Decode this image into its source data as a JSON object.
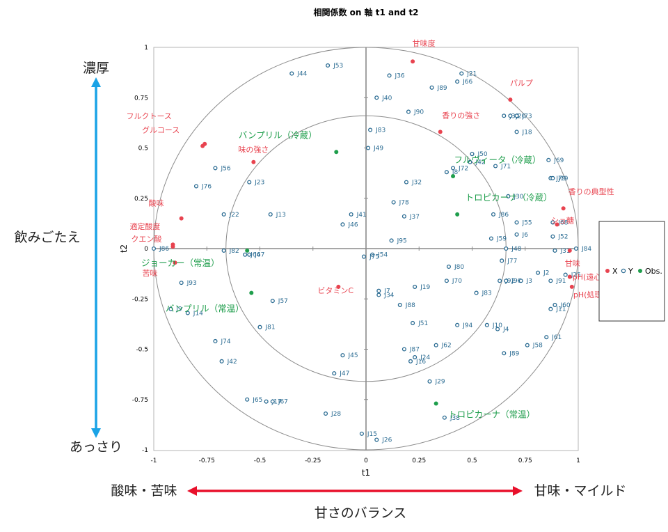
{
  "chart_data": {
    "type": "scatter",
    "title": "相関係数 on 軸 t1 and t2",
    "xlabel": "t1",
    "ylabel": "t2",
    "xlim": [
      -1,
      1
    ],
    "ylim": [
      -1,
      1
    ],
    "xticks": [
      "-1",
      "-0.75",
      "-0.5",
      "-0.25",
      "0",
      "0.25",
      "0.5",
      "0.75",
      "1"
    ],
    "yticks": [
      "1",
      "0.75",
      "0.5",
      "0.25",
      "0",
      "-0.25",
      "-0.5",
      "-0.75",
      "-1"
    ],
    "circles": [
      1.0,
      0.66
    ],
    "legend": {
      "position": "right",
      "entries": [
        "X",
        "Y",
        "Obs."
      ]
    },
    "colors": {
      "X": "#e8434f",
      "Y": "#2a6b92",
      "Obs": "#1f9e4c",
      "grid": "#9a9a9a"
    },
    "series": [
      {
        "name": "X",
        "points": [
          {
            "x": 0.22,
            "y": 0.93,
            "label": "甘味度"
          },
          {
            "x": 0.68,
            "y": 0.74,
            "label": "パルプ"
          },
          {
            "x": 0.35,
            "y": 0.58,
            "label": "香りの強さ"
          },
          {
            "x": -0.76,
            "y": 0.52,
            "label": "フルクトース"
          },
          {
            "x": -0.77,
            "y": 0.51,
            "label": "グルコース"
          },
          {
            "x": -0.53,
            "y": 0.43,
            "label": "味の強さ"
          },
          {
            "x": -0.87,
            "y": 0.15,
            "label": "酸味"
          },
          {
            "x": -0.91,
            "y": 0.02,
            "label": "適定酸度"
          },
          {
            "x": -0.91,
            "y": 0.01,
            "label": "クエン酸"
          },
          {
            "x": -0.9,
            "y": -0.07,
            "label": "苦味"
          },
          {
            "x": 0.93,
            "y": 0.2,
            "label": "香りの典型性"
          },
          {
            "x": 0.9,
            "y": 0.12,
            "label": "ショ糖"
          },
          {
            "x": 0.96,
            "y": -0.01,
            "label": "甘味"
          },
          {
            "x": 0.96,
            "y": -0.14,
            "label": "pH(遠心分離後)"
          },
          {
            "x": 0.97,
            "y": -0.19,
            "label": "pH(処理前)"
          },
          {
            "x": -0.13,
            "y": -0.19,
            "label": "ビタミンC"
          }
        ]
      },
      {
        "name": "Obs.",
        "points": [
          {
            "x": -0.14,
            "y": 0.48,
            "label": "バンプリル（冷蔵）"
          },
          {
            "x": 0.41,
            "y": 0.36,
            "label": "フルヴィータ（冷蔵）"
          },
          {
            "x": 0.43,
            "y": 0.17,
            "label": "トロピカーナ（冷蔵）"
          },
          {
            "x": -0.56,
            "y": -0.01,
            "label": "ジョーカー（常温）"
          },
          {
            "x": -0.54,
            "y": -0.22,
            "label": "バンプリル（常温）"
          },
          {
            "x": 0.33,
            "y": -0.77,
            "label": "トロピカーナ（常温）"
          }
        ]
      },
      {
        "name": "Y",
        "points": [
          {
            "x": -0.35,
            "y": 0.87,
            "label": "J44"
          },
          {
            "x": -0.18,
            "y": 0.91,
            "label": "J53"
          },
          {
            "x": 0.11,
            "y": 0.86,
            "label": "J36"
          },
          {
            "x": 0.45,
            "y": 0.87,
            "label": "J21"
          },
          {
            "x": 0.43,
            "y": 0.83,
            "label": "J66"
          },
          {
            "x": 0.31,
            "y": 0.8,
            "label": "J89"
          },
          {
            "x": 0.05,
            "y": 0.75,
            "label": "J40"
          },
          {
            "x": 0.2,
            "y": 0.68,
            "label": "J90"
          },
          {
            "x": 0.65,
            "y": 0.66,
            "label": "J33"
          },
          {
            "x": 0.68,
            "y": 0.66,
            "label": "J20"
          },
          {
            "x": 0.71,
            "y": 0.66,
            "label": "J73"
          },
          {
            "x": 0.71,
            "y": 0.58,
            "label": "J18"
          },
          {
            "x": 0.02,
            "y": 0.59,
            "label": "J83"
          },
          {
            "x": 0.01,
            "y": 0.5,
            "label": "J49"
          },
          {
            "x": 0.5,
            "y": 0.47,
            "label": "J50"
          },
          {
            "x": 0.49,
            "y": 0.43,
            "label": "J42"
          },
          {
            "x": 0.41,
            "y": 0.4,
            "label": "J72"
          },
          {
            "x": 0.38,
            "y": 0.38,
            "label": "J8"
          },
          {
            "x": 0.61,
            "y": 0.41,
            "label": "J71"
          },
          {
            "x": 0.86,
            "y": 0.44,
            "label": "J69"
          },
          {
            "x": 0.87,
            "y": 0.35,
            "label": "J79"
          },
          {
            "x": 0.88,
            "y": 0.35,
            "label": "J19"
          },
          {
            "x": -0.71,
            "y": 0.4,
            "label": "J56"
          },
          {
            "x": -0.8,
            "y": 0.31,
            "label": "J76"
          },
          {
            "x": -0.55,
            "y": 0.33,
            "label": "J23"
          },
          {
            "x": 0.19,
            "y": 0.33,
            "label": "J32"
          },
          {
            "x": 0.67,
            "y": 0.26,
            "label": "J30"
          },
          {
            "x": 0.13,
            "y": 0.23,
            "label": "J78"
          },
          {
            "x": -0.67,
            "y": 0.17,
            "label": "J22"
          },
          {
            "x": -0.45,
            "y": 0.17,
            "label": "J13"
          },
          {
            "x": -0.07,
            "y": 0.17,
            "label": "J41"
          },
          {
            "x": 0.18,
            "y": 0.16,
            "label": "J37"
          },
          {
            "x": -0.11,
            "y": 0.12,
            "label": "J46"
          },
          {
            "x": 0.6,
            "y": 0.17,
            "label": "J86"
          },
          {
            "x": 0.71,
            "y": 0.13,
            "label": "J55"
          },
          {
            "x": 0.88,
            "y": 0.13,
            "label": "J68"
          },
          {
            "x": 0.59,
            "y": 0.05,
            "label": "J59"
          },
          {
            "x": 0.71,
            "y": 0.07,
            "label": "J6"
          },
          {
            "x": 0.88,
            "y": 0.06,
            "label": "J52"
          },
          {
            "x": 0.12,
            "y": 0.04,
            "label": "J95"
          },
          {
            "x": -1.0,
            "y": 0.0,
            "label": "J86"
          },
          {
            "x": -0.67,
            "y": -0.01,
            "label": "J82"
          },
          {
            "x": -0.57,
            "y": -0.03,
            "label": "J64"
          },
          {
            "x": -0.55,
            "y": -0.03,
            "label": "J67"
          },
          {
            "x": 0.66,
            "y": 0.0,
            "label": "J48"
          },
          {
            "x": 0.89,
            "y": -0.01,
            "label": "J31"
          },
          {
            "x": 0.99,
            "y": 0.0,
            "label": "J84"
          },
          {
            "x": 0.03,
            "y": -0.03,
            "label": "J54"
          },
          {
            "x": -0.01,
            "y": -0.04,
            "label": "J75"
          },
          {
            "x": 0.64,
            "y": -0.06,
            "label": "J77"
          },
          {
            "x": 0.39,
            "y": -0.09,
            "label": "J80"
          },
          {
            "x": 0.81,
            "y": -0.12,
            "label": "J2"
          },
          {
            "x": 0.94,
            "y": -0.13,
            "label": "J25"
          },
          {
            "x": -0.87,
            "y": -0.17,
            "label": "J93"
          },
          {
            "x": 0.38,
            "y": -0.16,
            "label": "J70"
          },
          {
            "x": 0.63,
            "y": -0.16,
            "label": "J92"
          },
          {
            "x": 0.66,
            "y": -0.16,
            "label": "J96"
          },
          {
            "x": 0.73,
            "y": -0.16,
            "label": "J3"
          },
          {
            "x": 0.87,
            "y": -0.16,
            "label": "J91"
          },
          {
            "x": 0.23,
            "y": -0.19,
            "label": "J19"
          },
          {
            "x": 0.06,
            "y": -0.21,
            "label": "J7"
          },
          {
            "x": 0.52,
            "y": -0.22,
            "label": "J83"
          },
          {
            "x": 0.06,
            "y": -0.23,
            "label": "J34"
          },
          {
            "x": -0.92,
            "y": -0.3,
            "label": "J9"
          },
          {
            "x": -0.84,
            "y": -0.32,
            "label": "J14"
          },
          {
            "x": -0.44,
            "y": -0.26,
            "label": "J57"
          },
          {
            "x": 0.16,
            "y": -0.28,
            "label": "J88"
          },
          {
            "x": 0.89,
            "y": -0.28,
            "label": "J60"
          },
          {
            "x": 0.87,
            "y": -0.3,
            "label": "J11"
          },
          {
            "x": 0.22,
            "y": -0.37,
            "label": "J51"
          },
          {
            "x": 0.43,
            "y": -0.38,
            "label": "J94"
          },
          {
            "x": 0.57,
            "y": -0.38,
            "label": "J10"
          },
          {
            "x": 0.62,
            "y": -0.4,
            "label": "J4"
          },
          {
            "x": -0.5,
            "y": -0.39,
            "label": "J81"
          },
          {
            "x": 0.85,
            "y": -0.44,
            "label": "J61"
          },
          {
            "x": 0.76,
            "y": -0.48,
            "label": "J58"
          },
          {
            "x": 0.33,
            "y": -0.48,
            "label": "J62"
          },
          {
            "x": 0.18,
            "y": -0.5,
            "label": "J87"
          },
          {
            "x": 0.65,
            "y": -0.52,
            "label": "J89"
          },
          {
            "x": -0.71,
            "y": -0.46,
            "label": "J74"
          },
          {
            "x": -0.11,
            "y": -0.53,
            "label": "J45"
          },
          {
            "x": 0.23,
            "y": -0.54,
            "label": "J24"
          },
          {
            "x": 0.21,
            "y": -0.56,
            "label": "J16"
          },
          {
            "x": -0.68,
            "y": -0.56,
            "label": "J42"
          },
          {
            "x": -0.15,
            "y": -0.62,
            "label": "J47"
          },
          {
            "x": 0.3,
            "y": -0.66,
            "label": "J29"
          },
          {
            "x": -0.56,
            "y": -0.75,
            "label": "J65"
          },
          {
            "x": -0.47,
            "y": -0.76,
            "label": "J17"
          },
          {
            "x": -0.44,
            "y": -0.76,
            "label": "J67"
          },
          {
            "x": -0.19,
            "y": -0.82,
            "label": "J28"
          },
          {
            "x": 0.37,
            "y": -0.84,
            "label": "J38"
          },
          {
            "x": -0.02,
            "y": -0.92,
            "label": "J15"
          },
          {
            "x": 0.05,
            "y": -0.95,
            "label": "J26"
          }
        ]
      }
    ]
  },
  "annotations": {
    "left_top": "濃厚",
    "left_middle": "飲みごたえ",
    "left_bottom": "あっさり",
    "bottom_left": "酸味・苦味",
    "bottom_right": "甘味・マイルド",
    "bottom_center": "甘さのバランス",
    "vertical_arrow_color": "#1aa3e6",
    "horizontal_arrow_color": "#e8102b"
  }
}
